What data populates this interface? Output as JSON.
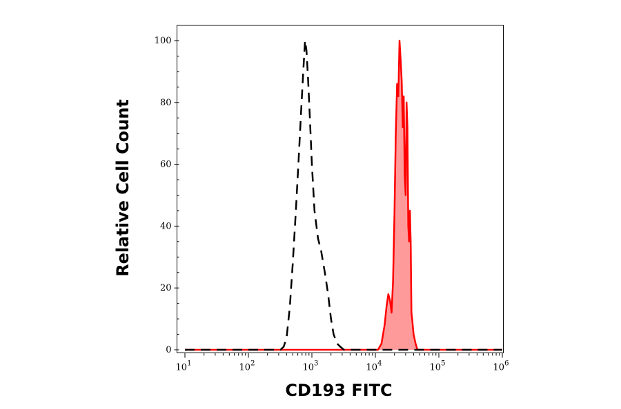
{
  "chart_data": {
    "type": "area",
    "xlabel": "CD193 FITC",
    "ylabel": "Relative Cell Count",
    "x_scale": "log",
    "xlim": [
      10,
      1000000
    ],
    "ylim": [
      0,
      100
    ],
    "x_ticks": [
      {
        "base": "10",
        "exp": "1"
      },
      {
        "base": "10",
        "exp": "2"
      },
      {
        "base": "10",
        "exp": "3"
      },
      {
        "base": "10",
        "exp": "4"
      },
      {
        "base": "10",
        "exp": "5"
      },
      {
        "base": "10",
        "exp": "6"
      }
    ],
    "y_ticks": [
      "0",
      "20",
      "40",
      "60",
      "80",
      "100"
    ],
    "grid": false,
    "series": [
      {
        "style": "dashed",
        "color": "#000000",
        "fill": "none",
        "x": [
          10,
          200,
          320,
          360,
          400,
          450,
          500,
          560,
          620,
          680,
          740,
          780,
          820,
          870,
          930,
          1000,
          1100,
          1250,
          1400,
          1600,
          1800,
          2000,
          2200,
          2500,
          2800,
          3200,
          4000,
          10000,
          1000000
        ],
        "y": [
          0,
          0,
          0,
          1,
          4,
          14,
          28,
          45,
          62,
          78,
          92,
          100,
          97,
          88,
          75,
          60,
          45,
          36,
          32,
          25,
          18,
          10,
          5,
          2,
          1,
          0,
          0,
          0,
          0
        ]
      },
      {
        "style": "solid",
        "color": "#ff0000",
        "fill": "#ff9a9a",
        "x": [
          10,
          11000,
          12500,
          14000,
          15000,
          16000,
          17000,
          18000,
          19000,
          20000,
          21000,
          22000,
          23000,
          24000,
          25000,
          26000,
          27000,
          28000,
          29000,
          30000,
          31000,
          32000,
          33000,
          34000,
          35000,
          36000,
          37000,
          38000,
          40000,
          43000,
          46000,
          60000,
          1000000
        ],
        "y": [
          0,
          0,
          2,
          8,
          14,
          18,
          16,
          12,
          22,
          44,
          70,
          86,
          82,
          100,
          94,
          87,
          72,
          82,
          57,
          50,
          80,
          72,
          40,
          35,
          45,
          35,
          12,
          10,
          5,
          2,
          0,
          0,
          0
        ]
      }
    ]
  }
}
